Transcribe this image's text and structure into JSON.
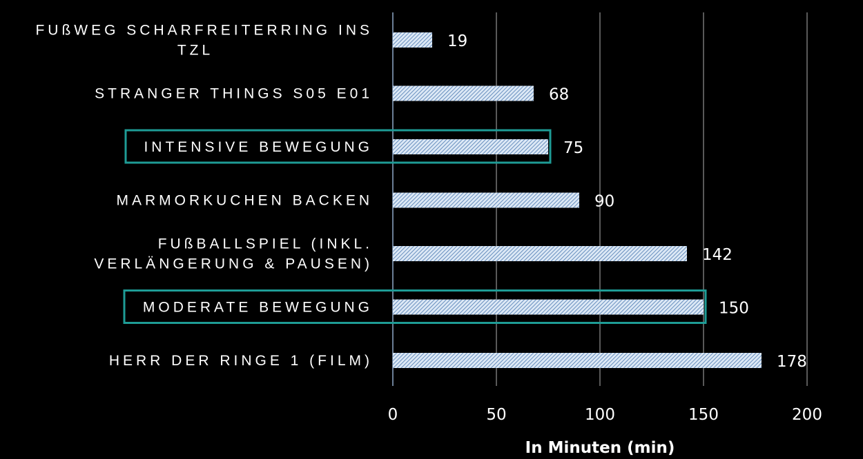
{
  "chart_data": {
    "type": "bar",
    "orientation": "horizontal",
    "categories": [
      [
        "FUßWEG SCHARFREITERRING INS",
        "TZL"
      ],
      [
        "STRANGER THINGS S05 E01"
      ],
      [
        "INTENSIVE BEWEGUNG"
      ],
      [
        "MARMORKUCHEN BACKEN"
      ],
      [
        "FUßBALLSPIEL (INKL.",
        "VERLÄNGERUNG & PAUSEN)"
      ],
      [
        "MODERATE BEWEGUNG"
      ],
      [
        "HERR DER RINGE 1 (FILM)"
      ]
    ],
    "values": [
      19,
      68,
      75,
      90,
      142,
      150,
      178
    ],
    "data_labels": [
      "19",
      "68",
      "75",
      "90",
      "142",
      "150",
      "178"
    ],
    "highlighted": [
      false,
      false,
      true,
      false,
      false,
      true,
      false
    ],
    "xlabel": "In Minuten (min)",
    "ylabel": "",
    "xlim": [
      0,
      200
    ],
    "xticks": [
      0,
      50,
      100,
      150,
      200
    ],
    "grid": true,
    "legend": "none",
    "bar_pattern": "diagonal-hatch"
  },
  "colors": {
    "background": "#000000",
    "bar_fill": "#dce8f5",
    "bar_hatch": "#4a78b0",
    "highlight_box": "#1e9c96",
    "gridline": "#595959",
    "axis_line": "#8fa9c8",
    "text": "#ffffff"
  }
}
